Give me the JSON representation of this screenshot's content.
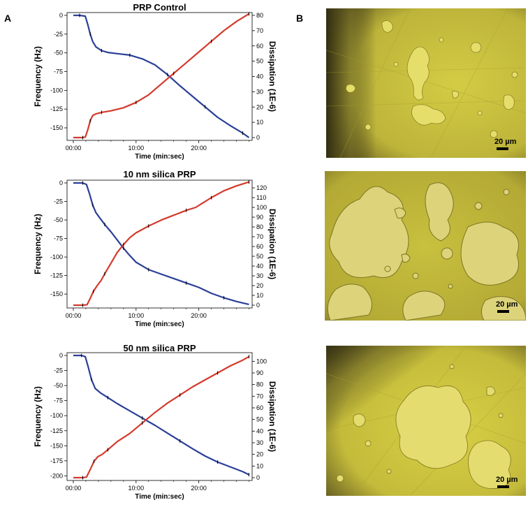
{
  "panel_labels": {
    "a": "A",
    "b": "B"
  },
  "colors": {
    "frequency": "#2b3f98",
    "dissipation": "#d43a2c",
    "micrograph_base": "#c9c23a",
    "micrograph_dark": "#3a3615"
  },
  "chart_data": [
    {
      "type": "line",
      "title": "PRP Control",
      "xlabel": "Time (min:sec)",
      "ylabel": "Frequency (Hz)",
      "y2label": "Dissipation (1E-6)",
      "x_unit": "min",
      "xlim": [
        -1,
        28.5
      ],
      "xticks": [
        0,
        10,
        20
      ],
      "xtick_labels": [
        "00:00",
        "10:00",
        "20:00"
      ],
      "ylim": [
        -163,
        0
      ],
      "yticks": [
        0,
        -25,
        -50,
        -75,
        -100,
        -125,
        -150
      ],
      "y2lim": [
        0,
        80
      ],
      "y2ticks": [
        0,
        10,
        20,
        30,
        40,
        50,
        60,
        70,
        80
      ],
      "series": [
        {
          "name": "Frequency",
          "axis": "left",
          "x": [
            0,
            1,
            1.9,
            2.3,
            2.7,
            3.1,
            3.6,
            4.5,
            5.5,
            7,
            9,
            11,
            13,
            15,
            17,
            19,
            21,
            23,
            25,
            27,
            28
          ],
          "y": [
            0,
            0,
            -1,
            -12,
            -25,
            -35,
            -42,
            -47,
            -49.5,
            -51,
            -53,
            -58,
            -66,
            -79,
            -94,
            -108,
            -122,
            -136,
            -147,
            -157,
            -163
          ]
        },
        {
          "name": "Dissipation",
          "axis": "right",
          "x": [
            0,
            1.5,
            1.9,
            2.3,
            2.7,
            3.1,
            3.6,
            4.5,
            6,
            8,
            10,
            12,
            14,
            16,
            18,
            20,
            22,
            24,
            26,
            28
          ],
          "y": [
            0,
            0,
            0.3,
            5,
            11,
            14.5,
            15.5,
            16.5,
            17.5,
            19.5,
            23,
            28,
            35,
            42,
            49,
            56,
            63,
            70,
            76,
            81
          ]
        }
      ]
    },
    {
      "type": "line",
      "title": "10 nm silica PRP",
      "xlabel": "Time (min:sec)",
      "ylabel": "Frequency (Hz)",
      "y2label": "Dissipation (1E-6)",
      "x_unit": "min",
      "xlim": [
        -1,
        28.5
      ],
      "xticks": [
        0,
        10,
        20
      ],
      "xtick_labels": [
        "00:00",
        "10:00",
        "20:00"
      ],
      "ylim": [
        -165,
        0
      ],
      "yticks": [
        0,
        -25,
        -50,
        -75,
        -100,
        -125,
        -150
      ],
      "y2lim": [
        0,
        125
      ],
      "y2ticks": [
        0,
        10,
        20,
        30,
        40,
        50,
        60,
        70,
        80,
        90,
        100,
        110,
        120
      ],
      "series": [
        {
          "name": "Frequency",
          "axis": "left",
          "x": [
            0,
            1.5,
            2.1,
            2.6,
            3.1,
            3.6,
            4.2,
            5,
            6,
            7,
            8,
            9,
            10,
            12,
            14,
            16,
            18,
            20,
            22,
            24,
            26,
            28
          ],
          "y": [
            0,
            0,
            -2,
            -15,
            -30,
            -40,
            -47,
            -56,
            -66,
            -77,
            -88,
            -98,
            -107,
            -117,
            -123,
            -129,
            -135,
            -141,
            -149,
            -155,
            -160,
            -164
          ]
        },
        {
          "name": "Dissipation",
          "axis": "right",
          "x": [
            0,
            1.5,
            2.2,
            2.7,
            3.2,
            3.8,
            4.4,
            5,
            6,
            7,
            8,
            9,
            10,
            12,
            14,
            16,
            18,
            19.5,
            20.5,
            22,
            24,
            26,
            28
          ],
          "y": [
            0,
            0,
            0.5,
            7,
            14,
            20,
            25,
            32,
            43,
            54,
            62,
            69,
            74,
            81,
            87,
            92,
            97,
            100,
            104,
            110,
            117,
            122,
            126
          ]
        }
      ]
    },
    {
      "type": "line",
      "title": "50 nm silica PRP",
      "xlabel": "Time (min:sec)",
      "ylabel": "Frequency (Hz)",
      "y2label": "Dissipation (1E-6)",
      "x_unit": "min",
      "xlim": [
        -1,
        28.5
      ],
      "xticks": [
        0,
        10,
        20
      ],
      "xtick_labels": [
        "00:00",
        "10:00",
        "20:00"
      ],
      "ylim": [
        -203,
        0
      ],
      "yticks": [
        0,
        -25,
        -50,
        -75,
        -100,
        -125,
        -150,
        -175,
        -200
      ],
      "y2lim": [
        0,
        105
      ],
      "y2ticks": [
        0,
        10,
        20,
        30,
        40,
        50,
        60,
        70,
        80,
        90,
        100
      ],
      "series": [
        {
          "name": "Frequency",
          "axis": "left",
          "x": [
            0,
            1.3,
            1.9,
            2.4,
            2.9,
            3.5,
            4.3,
            5.5,
            7,
            9,
            11,
            13,
            15,
            17,
            19,
            21,
            23,
            25,
            27,
            28
          ],
          "y": [
            0,
            0,
            -2,
            -20,
            -40,
            -55,
            -62,
            -70,
            -80,
            -92,
            -104,
            -116,
            -129,
            -142,
            -155,
            -167,
            -177,
            -185,
            -193,
            -198
          ]
        },
        {
          "name": "Dissipation",
          "axis": "right",
          "x": [
            0,
            1.5,
            2.1,
            2.7,
            3.3,
            3.9,
            4.6,
            5.5,
            7,
            9,
            11,
            13,
            15,
            17,
            19,
            21,
            23,
            25,
            27,
            28
          ],
          "y": [
            0,
            0,
            0.5,
            7,
            14,
            18,
            20,
            24,
            31,
            38,
            47,
            56,
            64,
            71,
            78,
            84,
            90,
            96,
            101,
            104
          ]
        }
      ]
    }
  ],
  "micrographs": [
    {
      "name": "PRP Control",
      "scale_bar": "20 µm"
    },
    {
      "name": "10 nm silica PRP",
      "scale_bar": "20 µm"
    },
    {
      "name": "50 nm silica PRP",
      "scale_bar": "20 µm"
    }
  ]
}
